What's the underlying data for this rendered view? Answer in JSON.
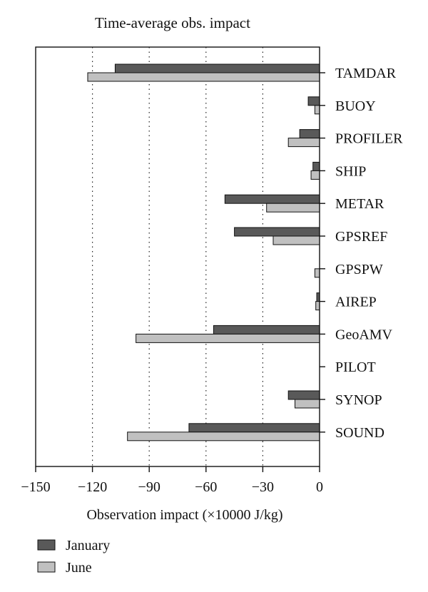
{
  "chart_data": {
    "type": "bar",
    "orientation": "horizontal",
    "title": "Time-average obs. impact",
    "xlabel": "Observation impact (×10000 J/kg)",
    "xlim": [
      -150,
      0
    ],
    "xticks": [
      "−150",
      "−120",
      "−90",
      "−60",
      "−30",
      "0"
    ],
    "xtick_values": [
      -150,
      -120,
      -90,
      -60,
      -30,
      0
    ],
    "gridlines_at": [
      -120,
      -90,
      -60,
      -30
    ],
    "grid": "dotted vertical",
    "categories": [
      "TAMDAR",
      "BUOY",
      "PROFILER",
      "SHIP",
      "METAR",
      "GPSREF",
      "GPSPW",
      "AIREP",
      "GeoAMV",
      "PILOT",
      "SYNOP",
      "SOUND"
    ],
    "series": [
      {
        "name": "January",
        "color": "#595959",
        "values": [
          -108,
          -6,
          -10.5,
          -3.5,
          -50,
          -45,
          0,
          -1.5,
          -56,
          0,
          -16.5,
          -69
        ]
      },
      {
        "name": "June",
        "color": "#c0c0c0",
        "values": [
          -122.5,
          -2.5,
          -16.5,
          -4.5,
          -28,
          -24.5,
          -2.5,
          -2,
          -97,
          0,
          -13,
          -101.5
        ]
      }
    ],
    "legend_position": "bottom-left"
  }
}
